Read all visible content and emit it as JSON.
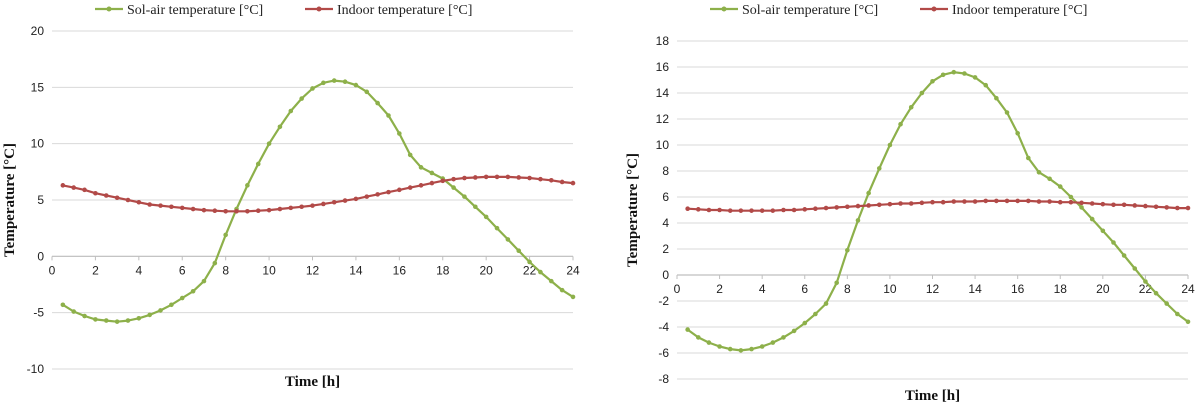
{
  "colors": {
    "sol_air": "#8db04a",
    "indoor": "#b24a48",
    "grid": "#d9d9d9",
    "axis": "#bfbfbf"
  },
  "chart_data": [
    {
      "type": "line",
      "xlabel": "Time [h]",
      "ylabel": "Temperature [°C]",
      "xlim": [
        0,
        24
      ],
      "ylim": [
        -10,
        20
      ],
      "xticks": [
        0,
        2,
        4,
        6,
        8,
        10,
        12,
        14,
        16,
        18,
        20,
        22,
        24
      ],
      "yticks": [
        -10,
        -5,
        0,
        5,
        10,
        15,
        20
      ],
      "grid": "horizontal",
      "legend_position": "top",
      "series": [
        {
          "name": "Sol-air temperature [°C]",
          "x": [
            0.5,
            1,
            1.5,
            2,
            2.5,
            3,
            3.5,
            4,
            4.5,
            5,
            5.5,
            6,
            6.5,
            7,
            7.5,
            8,
            8.5,
            9,
            9.5,
            10,
            10.5,
            11,
            11.5,
            12,
            12.5,
            13,
            13.5,
            14,
            14.5,
            15,
            15.5,
            16,
            16.5,
            17,
            17.5,
            18,
            18.5,
            19,
            19.5,
            20,
            20.5,
            21,
            21.5,
            22,
            22.5,
            23,
            23.5,
            24
          ],
          "values": [
            -4.3,
            -4.9,
            -5.3,
            -5.6,
            -5.7,
            -5.8,
            -5.7,
            -5.5,
            -5.2,
            -4.8,
            -4.3,
            -3.7,
            -3.1,
            -2.2,
            -0.6,
            1.9,
            4.2,
            6.3,
            8.2,
            10.0,
            11.5,
            12.9,
            14.0,
            14.9,
            15.4,
            15.6,
            15.5,
            15.2,
            14.6,
            13.6,
            12.5,
            10.9,
            9.0,
            7.9,
            7.4,
            6.9,
            6.1,
            5.3,
            4.4,
            3.5,
            2.5,
            1.5,
            0.5,
            -0.5,
            -1.4,
            -2.2,
            -3.0,
            -3.6
          ]
        },
        {
          "name": "Indoor temperature [°C]",
          "x": [
            0.5,
            1,
            1.5,
            2,
            2.5,
            3,
            3.5,
            4,
            4.5,
            5,
            5.5,
            6,
            6.5,
            7,
            7.5,
            8,
            8.5,
            9,
            9.5,
            10,
            10.5,
            11,
            11.5,
            12,
            12.5,
            13,
            13.5,
            14,
            14.5,
            15,
            15.5,
            16,
            16.5,
            17,
            17.5,
            18,
            18.5,
            19,
            19.5,
            20,
            20.5,
            21,
            21.5,
            22,
            22.5,
            23,
            23.5,
            24
          ],
          "values": [
            6.3,
            6.1,
            5.9,
            5.6,
            5.4,
            5.2,
            5.0,
            4.8,
            4.6,
            4.5,
            4.4,
            4.3,
            4.2,
            4.1,
            4.05,
            4.0,
            4.0,
            4.0,
            4.05,
            4.1,
            4.2,
            4.3,
            4.4,
            4.5,
            4.65,
            4.8,
            4.95,
            5.1,
            5.3,
            5.5,
            5.7,
            5.9,
            6.1,
            6.3,
            6.5,
            6.7,
            6.85,
            6.95,
            7.0,
            7.05,
            7.05,
            7.05,
            7.0,
            6.95,
            6.85,
            6.75,
            6.6,
            6.5
          ]
        }
      ]
    },
    {
      "type": "line",
      "xlabel": "Time [h]",
      "ylabel": "Temperature [°C]",
      "xlim": [
        0,
        24
      ],
      "ylim": [
        -8,
        18
      ],
      "xticks": [
        0,
        2,
        4,
        6,
        8,
        10,
        12,
        14,
        16,
        18,
        20,
        22,
        24
      ],
      "yticks": [
        -8,
        -6,
        -4,
        -2,
        0,
        2,
        4,
        6,
        8,
        10,
        12,
        14,
        16,
        18
      ],
      "grid": "horizontal",
      "legend_position": "top",
      "series": [
        {
          "name": "Sol-air temperature [°C]",
          "x": [
            0.5,
            1,
            1.5,
            2,
            2.5,
            3,
            3.5,
            4,
            4.5,
            5,
            5.5,
            6,
            6.5,
            7,
            7.5,
            8,
            8.5,
            9,
            9.5,
            10,
            10.5,
            11,
            11.5,
            12,
            12.5,
            13,
            13.5,
            14,
            14.5,
            15,
            15.5,
            16,
            16.5,
            17,
            17.5,
            18,
            18.5,
            19,
            19.5,
            20,
            20.5,
            21,
            21.5,
            22,
            22.5,
            23,
            23.5,
            24
          ],
          "values": [
            -4.2,
            -4.8,
            -5.2,
            -5.5,
            -5.7,
            -5.8,
            -5.7,
            -5.5,
            -5.2,
            -4.8,
            -4.3,
            -3.7,
            -3.0,
            -2.2,
            -0.6,
            1.9,
            4.2,
            6.3,
            8.2,
            10.0,
            11.6,
            12.9,
            14.0,
            14.9,
            15.4,
            15.6,
            15.5,
            15.2,
            14.6,
            13.6,
            12.5,
            10.9,
            9.0,
            7.9,
            7.4,
            6.8,
            6.0,
            5.2,
            4.3,
            3.4,
            2.5,
            1.5,
            0.5,
            -0.5,
            -1.4,
            -2.2,
            -3.0,
            -3.6
          ]
        },
        {
          "name": "Indoor temperature [°C]",
          "x": [
            0.5,
            1,
            1.5,
            2,
            2.5,
            3,
            3.5,
            4,
            4.5,
            5,
            5.5,
            6,
            6.5,
            7,
            7.5,
            8,
            8.5,
            9,
            9.5,
            10,
            10.5,
            11,
            11.5,
            12,
            12.5,
            13,
            13.5,
            14,
            14.5,
            15,
            15.5,
            16,
            16.5,
            17,
            17.5,
            18,
            18.5,
            19,
            19.5,
            20,
            20.5,
            21,
            21.5,
            22,
            22.5,
            23,
            23.5,
            24
          ],
          "values": [
            5.1,
            5.05,
            5.0,
            5.0,
            4.95,
            4.95,
            4.95,
            4.95,
            4.95,
            5.0,
            5.0,
            5.05,
            5.1,
            5.15,
            5.2,
            5.25,
            5.3,
            5.35,
            5.4,
            5.45,
            5.5,
            5.5,
            5.55,
            5.6,
            5.6,
            5.65,
            5.65,
            5.65,
            5.7,
            5.7,
            5.7,
            5.7,
            5.7,
            5.65,
            5.65,
            5.6,
            5.6,
            5.55,
            5.5,
            5.45,
            5.4,
            5.4,
            5.35,
            5.3,
            5.25,
            5.2,
            5.15,
            5.15
          ]
        }
      ]
    }
  ]
}
